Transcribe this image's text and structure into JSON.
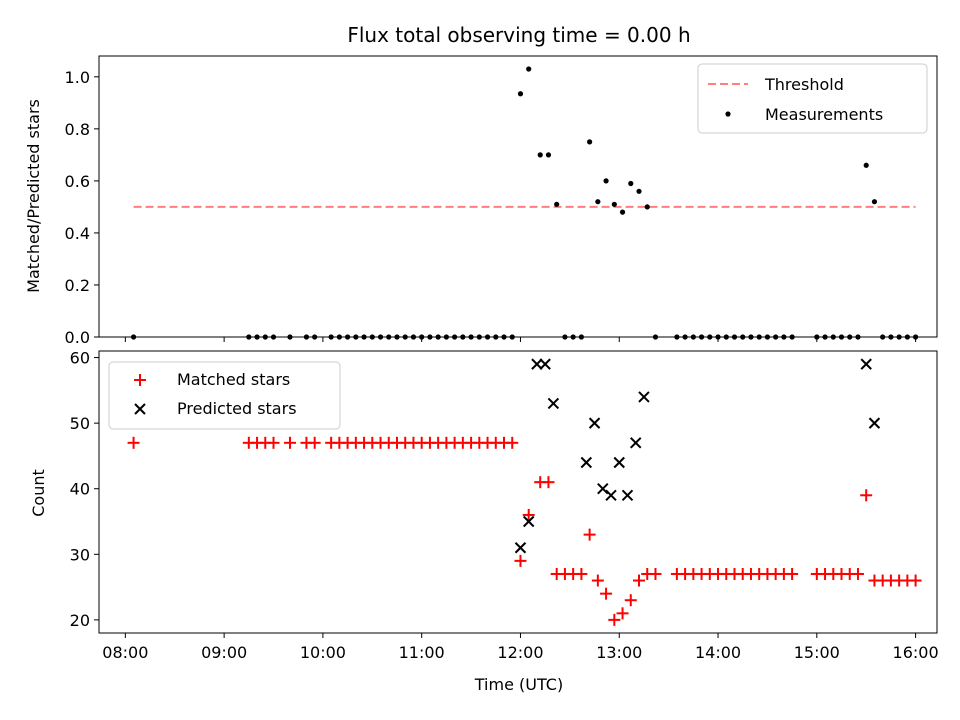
{
  "chart_data": [
    {
      "type": "scatter",
      "title": "Flux total observing time = 0.00 h",
      "xlabel": "",
      "ylabel": "Matched/Predicted stars",
      "xlim": [
        "07:44",
        "16:13"
      ],
      "ylim": [
        0,
        1.08
      ],
      "yticks": [
        0.0,
        0.2,
        0.4,
        0.6,
        0.8,
        1.0
      ],
      "ytick_labels": [
        "0.0",
        "0.2",
        "0.4",
        "0.6",
        "0.8",
        "1.0"
      ],
      "legend_position": "top-right",
      "threshold": {
        "name": "Threshold",
        "value": 0.5,
        "x_range": [
          "08:05",
          "16:00"
        ],
        "color": "#ff7f7f",
        "style": "dashed"
      },
      "series": [
        {
          "name": "Measurements",
          "marker": "dot",
          "color": "#000000",
          "points": [
            [
              "08:05",
              0
            ],
            [
              "09:15",
              0
            ],
            [
              "09:20",
              0
            ],
            [
              "09:25",
              0
            ],
            [
              "09:30",
              0
            ],
            [
              "09:40",
              0
            ],
            [
              "09:50",
              0
            ],
            [
              "09:55",
              0
            ],
            [
              "10:05",
              0
            ],
            [
              "10:10",
              0
            ],
            [
              "10:15",
              0
            ],
            [
              "10:20",
              0
            ],
            [
              "10:25",
              0
            ],
            [
              "10:30",
              0
            ],
            [
              "10:35",
              0
            ],
            [
              "10:40",
              0
            ],
            [
              "10:45",
              0
            ],
            [
              "10:50",
              0
            ],
            [
              "10:55",
              0
            ],
            [
              "11:00",
              0
            ],
            [
              "11:05",
              0
            ],
            [
              "11:10",
              0
            ],
            [
              "11:15",
              0
            ],
            [
              "11:20",
              0
            ],
            [
              "11:25",
              0
            ],
            [
              "11:30",
              0
            ],
            [
              "11:35",
              0
            ],
            [
              "11:40",
              0
            ],
            [
              "11:45",
              0
            ],
            [
              "11:50",
              0
            ],
            [
              "11:55",
              0
            ],
            [
              "12:00",
              0.935
            ],
            [
              "12:05",
              1.03
            ],
            [
              "12:12",
              0.7
            ],
            [
              "12:17",
              0.7
            ],
            [
              "12:22",
              0.51
            ],
            [
              "12:27",
              0
            ],
            [
              "12:32",
              0
            ],
            [
              "12:37",
              0
            ],
            [
              "12:42",
              0.75
            ],
            [
              "12:47",
              0.52
            ],
            [
              "12:52",
              0.6
            ],
            [
              "12:57",
              0.51
            ],
            [
              "13:02",
              0.48
            ],
            [
              "13:07",
              0.59
            ],
            [
              "13:12",
              0.56
            ],
            [
              "13:17",
              0.5
            ],
            [
              "13:22",
              0
            ],
            [
              "13:35",
              0
            ],
            [
              "13:40",
              0
            ],
            [
              "13:45",
              0
            ],
            [
              "13:50",
              0
            ],
            [
              "13:55",
              0
            ],
            [
              "14:00",
              0
            ],
            [
              "14:05",
              0
            ],
            [
              "14:10",
              0
            ],
            [
              "14:15",
              0
            ],
            [
              "14:20",
              0
            ],
            [
              "14:25",
              0
            ],
            [
              "14:30",
              0
            ],
            [
              "14:35",
              0
            ],
            [
              "14:40",
              0
            ],
            [
              "14:45",
              0
            ],
            [
              "15:00",
              0
            ],
            [
              "15:05",
              0
            ],
            [
              "15:10",
              0
            ],
            [
              "15:15",
              0
            ],
            [
              "15:20",
              0
            ],
            [
              "15:25",
              0
            ],
            [
              "15:30",
              0.66
            ],
            [
              "15:35",
              0.52
            ],
            [
              "15:40",
              0
            ],
            [
              "15:45",
              0
            ],
            [
              "15:50",
              0
            ],
            [
              "15:55",
              0
            ],
            [
              "16:00",
              0
            ]
          ]
        }
      ]
    },
    {
      "type": "scatter",
      "title": "",
      "xlabel": "Time (UTC)",
      "ylabel": "Count",
      "xlim": [
        "07:44",
        "16:13"
      ],
      "ylim": [
        18,
        61
      ],
      "yticks": [
        20,
        30,
        40,
        50,
        60
      ],
      "ytick_labels": [
        "20",
        "30",
        "40",
        "50",
        "60"
      ],
      "xticks": [
        "08:00",
        "09:00",
        "10:00",
        "11:00",
        "12:00",
        "13:00",
        "14:00",
        "15:00",
        "16:00"
      ],
      "xtick_labels": [
        "08:00",
        "09:00",
        "10:00",
        "11:00",
        "12:00",
        "13:00",
        "14:00",
        "15:00",
        "16:00"
      ],
      "legend_position": "top-left",
      "series": [
        {
          "name": "Matched stars",
          "marker": "plus",
          "color": "#ff0000",
          "points": [
            [
              "08:05",
              47
            ],
            [
              "09:15",
              47
            ],
            [
              "09:20",
              47
            ],
            [
              "09:25",
              47
            ],
            [
              "09:30",
              47
            ],
            [
              "09:40",
              47
            ],
            [
              "09:50",
              47
            ],
            [
              "09:55",
              47
            ],
            [
              "10:05",
              47
            ],
            [
              "10:10",
              47
            ],
            [
              "10:15",
              47
            ],
            [
              "10:20",
              47
            ],
            [
              "10:25",
              47
            ],
            [
              "10:30",
              47
            ],
            [
              "10:35",
              47
            ],
            [
              "10:40",
              47
            ],
            [
              "10:45",
              47
            ],
            [
              "10:50",
              47
            ],
            [
              "10:55",
              47
            ],
            [
              "11:00",
              47
            ],
            [
              "11:05",
              47
            ],
            [
              "11:10",
              47
            ],
            [
              "11:15",
              47
            ],
            [
              "11:20",
              47
            ],
            [
              "11:25",
              47
            ],
            [
              "11:30",
              47
            ],
            [
              "11:35",
              47
            ],
            [
              "11:40",
              47
            ],
            [
              "11:45",
              47
            ],
            [
              "11:50",
              47
            ],
            [
              "11:55",
              47
            ],
            [
              "12:00",
              29
            ],
            [
              "12:05",
              36
            ],
            [
              "12:12",
              41
            ],
            [
              "12:17",
              41
            ],
            [
              "12:22",
              27
            ],
            [
              "12:27",
              27
            ],
            [
              "12:32",
              27
            ],
            [
              "12:37",
              27
            ],
            [
              "12:42",
              33
            ],
            [
              "12:47",
              26
            ],
            [
              "12:52",
              24
            ],
            [
              "12:57",
              20
            ],
            [
              "13:02",
              21
            ],
            [
              "13:07",
              23
            ],
            [
              "13:12",
              26
            ],
            [
              "13:17",
              27
            ],
            [
              "13:22",
              27
            ],
            [
              "13:35",
              27
            ],
            [
              "13:40",
              27
            ],
            [
              "13:45",
              27
            ],
            [
              "13:50",
              27
            ],
            [
              "13:55",
              27
            ],
            [
              "14:00",
              27
            ],
            [
              "14:05",
              27
            ],
            [
              "14:10",
              27
            ],
            [
              "14:15",
              27
            ],
            [
              "14:20",
              27
            ],
            [
              "14:25",
              27
            ],
            [
              "14:30",
              27
            ],
            [
              "14:35",
              27
            ],
            [
              "14:40",
              27
            ],
            [
              "14:45",
              27
            ],
            [
              "15:00",
              27
            ],
            [
              "15:05",
              27
            ],
            [
              "15:10",
              27
            ],
            [
              "15:15",
              27
            ],
            [
              "15:20",
              27
            ],
            [
              "15:25",
              27
            ],
            [
              "15:30",
              39
            ],
            [
              "15:35",
              26
            ],
            [
              "15:40",
              26
            ],
            [
              "15:45",
              26
            ],
            [
              "15:50",
              26
            ],
            [
              "15:55",
              26
            ],
            [
              "16:00",
              26
            ]
          ]
        },
        {
          "name": "Predicted stars",
          "marker": "x",
          "color": "#000000",
          "points": [
            [
              "12:00",
              31
            ],
            [
              "12:05",
              35
            ],
            [
              "12:10",
              59
            ],
            [
              "12:15",
              59
            ],
            [
              "12:20",
              53
            ],
            [
              "12:40",
              44
            ],
            [
              "12:45",
              50
            ],
            [
              "12:50",
              40
            ],
            [
              "12:55",
              39
            ],
            [
              "13:00",
              44
            ],
            [
              "13:05",
              39
            ],
            [
              "13:10",
              47
            ],
            [
              "13:15",
              54
            ],
            [
              "15:30",
              59
            ],
            [
              "15:35",
              50
            ]
          ]
        }
      ]
    }
  ]
}
